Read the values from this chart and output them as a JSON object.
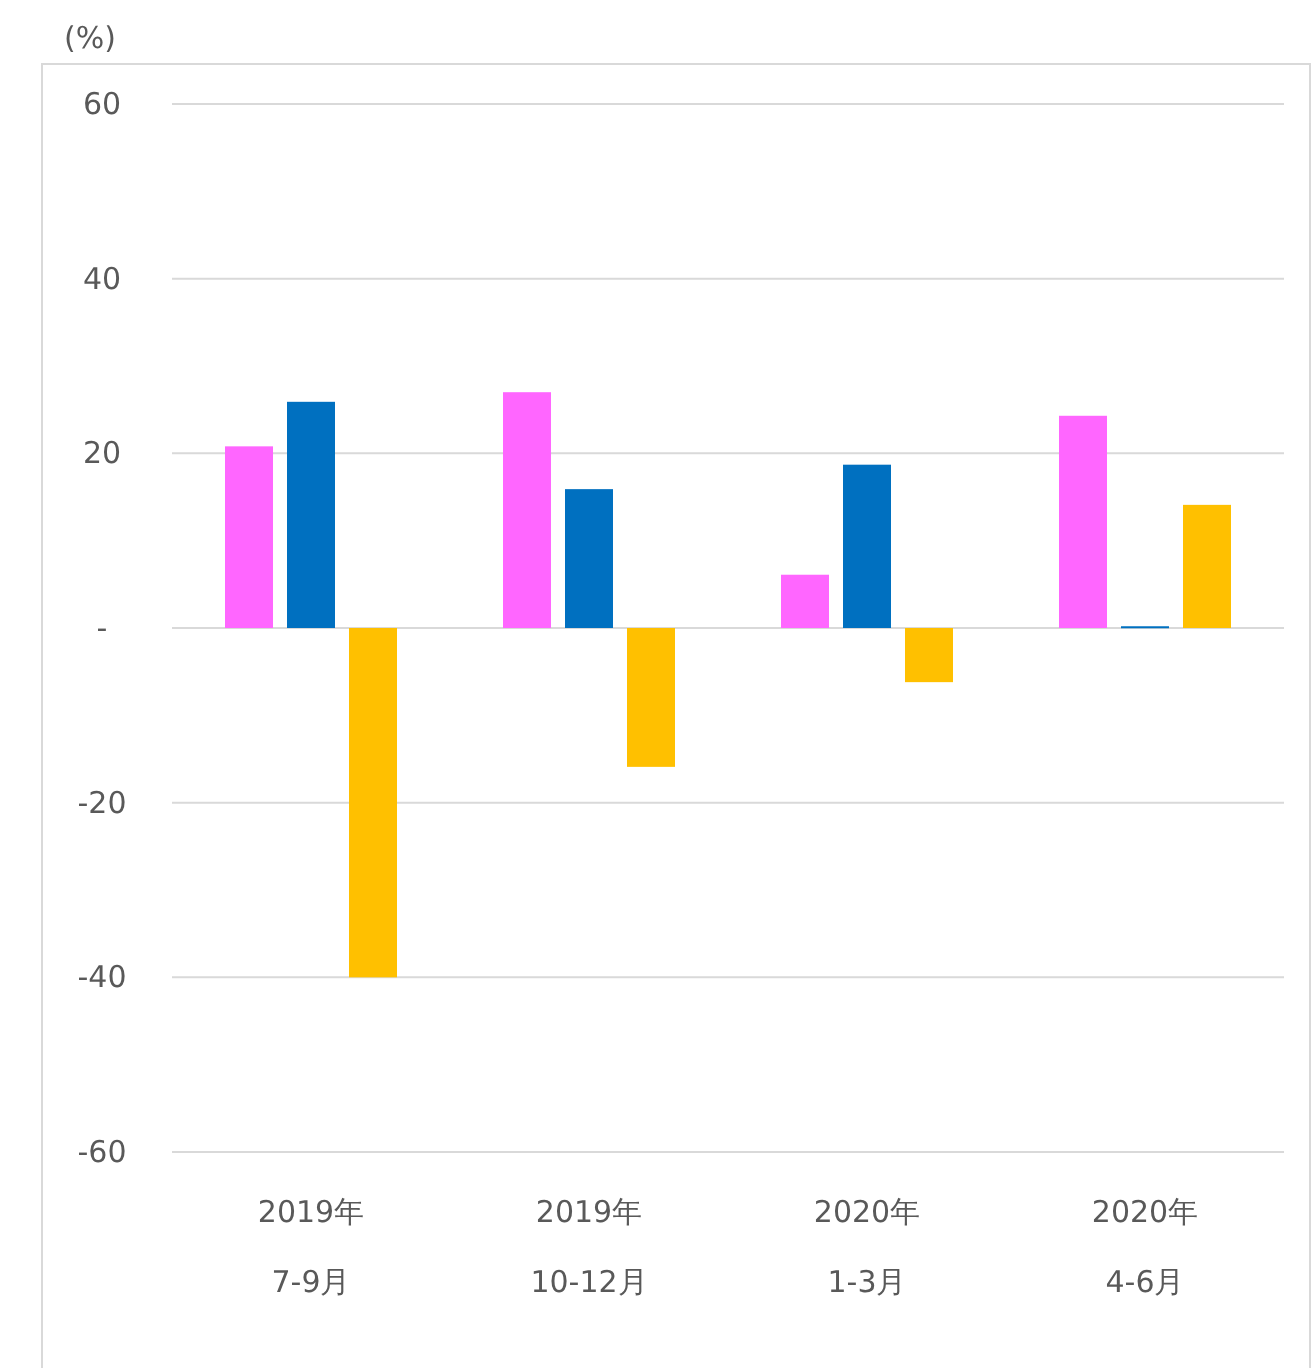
{
  "chart_data": {
    "type": "bar",
    "ylabel": "(%)",
    "categories": [
      "2019年\n7-9月",
      "2019年\n10-12月",
      "2020年\n1-3月",
      "2020年\n4-6月"
    ],
    "series": [
      {
        "color": "#ff66ff",
        "values": [
          20.8,
          27.0,
          6.1,
          24.3
        ]
      },
      {
        "color": "#0070c0",
        "values": [
          25.9,
          15.9,
          18.7,
          0.2
        ]
      },
      {
        "color": "#ffc000",
        "values": [
          -40,
          -15.9,
          -6.2,
          14.1
        ]
      }
    ],
    "ylim": [
      -60,
      60
    ],
    "yticks": [
      -60,
      -40,
      -20,
      {
        "value": 0,
        "label": "-"
      },
      20,
      40,
      60
    ],
    "grid": "y"
  }
}
